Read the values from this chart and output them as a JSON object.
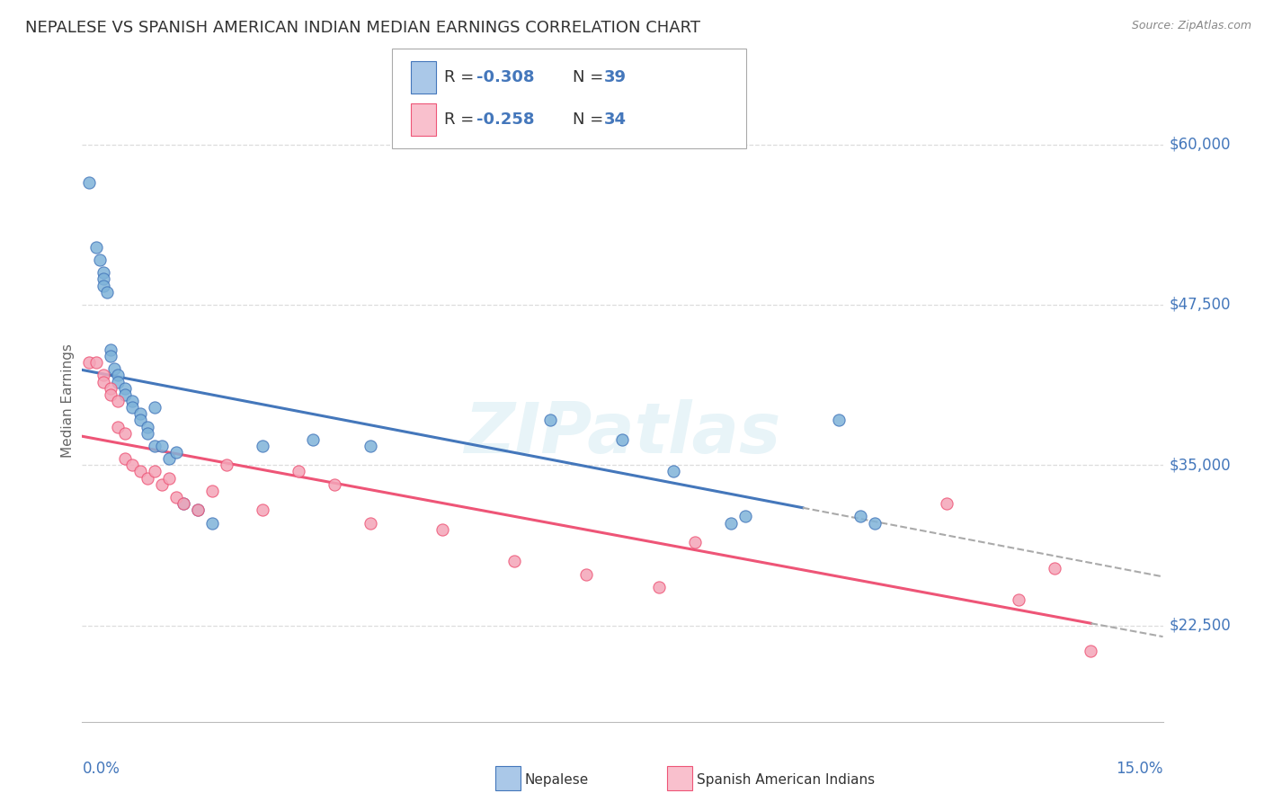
{
  "title": "NEPALESE VS SPANISH AMERICAN INDIAN MEDIAN EARNINGS CORRELATION CHART",
  "source": "Source: ZipAtlas.com",
  "ylabel": "Median Earnings",
  "watermark": "ZIPatlas",
  "xlim": [
    0.0,
    0.15
  ],
  "ylim": [
    15000,
    65000
  ],
  "yticks": [
    22500,
    35000,
    47500,
    60000
  ],
  "ytick_labels": [
    "$22,500",
    "$35,000",
    "$47,500",
    "$60,000"
  ],
  "blue_scatter": "#7fb3d9",
  "pink_scatter": "#f4a5b8",
  "blue_edge": "#4477BB",
  "pink_edge": "#EE5577",
  "blue_face_legend": "#aac8e8",
  "pink_face_legend": "#f9c0cd",
  "trend_blue": "#4477BB",
  "trend_pink": "#EE5577",
  "legend_label_nepalese": "Nepalese",
  "legend_label_spanish": "Spanish American Indians",
  "nepalese_x": [
    0.001,
    0.002,
    0.0025,
    0.003,
    0.003,
    0.003,
    0.0035,
    0.004,
    0.004,
    0.0045,
    0.005,
    0.005,
    0.006,
    0.006,
    0.007,
    0.007,
    0.008,
    0.008,
    0.009,
    0.009,
    0.01,
    0.01,
    0.011,
    0.012,
    0.013,
    0.014,
    0.016,
    0.018,
    0.025,
    0.032,
    0.04,
    0.065,
    0.075,
    0.082,
    0.09,
    0.092,
    0.105,
    0.108,
    0.11
  ],
  "nepalese_y": [
    57000,
    52000,
    51000,
    50000,
    49500,
    49000,
    48500,
    44000,
    43500,
    42500,
    42000,
    41500,
    41000,
    40500,
    40000,
    39500,
    39000,
    38500,
    38000,
    37500,
    39500,
    36500,
    36500,
    35500,
    36000,
    32000,
    31500,
    30500,
    36500,
    37000,
    36500,
    38500,
    37000,
    34500,
    30500,
    31000,
    38500,
    31000,
    30500
  ],
  "spanish_x": [
    0.001,
    0.002,
    0.003,
    0.003,
    0.004,
    0.004,
    0.005,
    0.005,
    0.006,
    0.006,
    0.007,
    0.008,
    0.009,
    0.01,
    0.011,
    0.012,
    0.013,
    0.014,
    0.016,
    0.018,
    0.02,
    0.025,
    0.03,
    0.035,
    0.04,
    0.05,
    0.06,
    0.07,
    0.08,
    0.085,
    0.12,
    0.13,
    0.135,
    0.14
  ],
  "spanish_y": [
    43000,
    43000,
    42000,
    41500,
    41000,
    40500,
    40000,
    38000,
    37500,
    35500,
    35000,
    34500,
    34000,
    34500,
    33500,
    34000,
    32500,
    32000,
    31500,
    33000,
    35000,
    31500,
    34500,
    33500,
    30500,
    30000,
    27500,
    26500,
    25500,
    29000,
    32000,
    24500,
    27000,
    20500
  ]
}
